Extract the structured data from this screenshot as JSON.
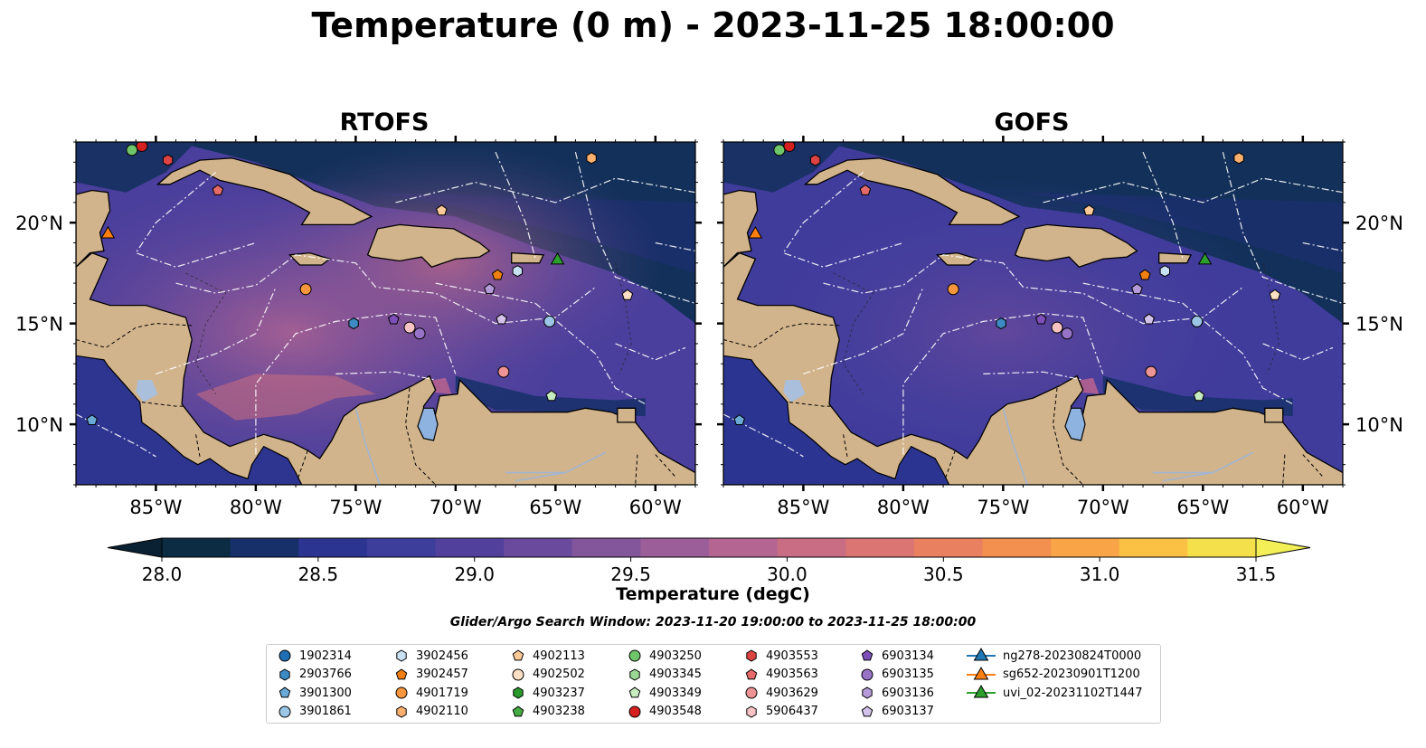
{
  "title": "Temperature (0 m) - 2023-11-25 18:00:00",
  "panels": [
    {
      "title": "RTOFS",
      "variant": "warm"
    },
    {
      "title": "GOFS",
      "variant": "cool"
    }
  ],
  "map": {
    "lon_range": [
      -89,
      -58
    ],
    "lat_range": [
      7,
      24
    ],
    "lon_ticks": [
      -85,
      -80,
      -75,
      -70,
      -65,
      -60
    ],
    "lon_tick_labels": [
      "85°W",
      "80°W",
      "75°W",
      "70°W",
      "65°W",
      "60°W"
    ],
    "lat_ticks": [
      10,
      15,
      20
    ],
    "lat_tick_labels": [
      "10°N",
      "15°N",
      "20°N"
    ],
    "land_color": "#d2b48c",
    "lake_color": "#8fb3e0"
  },
  "colorbar": {
    "label": "Temperature (degC)",
    "vmin": 28.0,
    "vmax": 31.5,
    "ticks": [
      "28.0",
      "28.5",
      "29.0",
      "29.5",
      "30.0",
      "30.5",
      "31.0",
      "31.5"
    ],
    "colors": [
      "#0b2c43",
      "#17306a",
      "#2b3591",
      "#3d3d9c",
      "#51419c",
      "#6a4a9c",
      "#83569c",
      "#9c5e99",
      "#b46591",
      "#c86d84",
      "#db7574",
      "#e9805f",
      "#f38f4f",
      "#f8a447",
      "#fac144",
      "#f4e04a"
    ]
  },
  "search_window": "Glider/Argo Search Window: 2023-11-20 19:00:00 to 2023-11-25 18:00:00",
  "legend": {
    "columns": [
      [
        {
          "label": "1902314",
          "marker": "circle",
          "color": "#1f6fb4"
        },
        {
          "label": "2903766",
          "marker": "hexagon",
          "color": "#3d8bc4"
        },
        {
          "label": "3901300",
          "marker": "pentagon",
          "color": "#6aaad8"
        },
        {
          "label": "3901861",
          "marker": "circle",
          "color": "#9cc6e6"
        }
      ],
      [
        {
          "label": "3902456",
          "marker": "hexagon",
          "color": "#c8e2f3"
        },
        {
          "label": "3902457",
          "marker": "pentagon",
          "color": "#f07f10"
        },
        {
          "label": "4901719",
          "marker": "circle",
          "color": "#f7963c"
        },
        {
          "label": "4902110",
          "marker": "hexagon",
          "color": "#fbb06d"
        }
      ],
      [
        {
          "label": "4902113",
          "marker": "pentagon",
          "color": "#fcc998"
        },
        {
          "label": "4902502",
          "marker": "circle",
          "color": "#fde0c4"
        },
        {
          "label": "4903237",
          "marker": "hexagon",
          "color": "#2a9a2a"
        },
        {
          "label": "4903238",
          "marker": "pentagon",
          "color": "#43ad43"
        }
      ],
      [
        {
          "label": "4903250",
          "marker": "circle",
          "color": "#6fc56a"
        },
        {
          "label": "4903345",
          "marker": "hexagon",
          "color": "#9ad893"
        },
        {
          "label": "4903349",
          "marker": "pentagon",
          "color": "#c7ecc0"
        },
        {
          "label": "4903548",
          "marker": "circle",
          "color": "#d62020"
        }
      ],
      [
        {
          "label": "4903553",
          "marker": "hexagon",
          "color": "#dd4343"
        },
        {
          "label": "4903563",
          "marker": "pentagon",
          "color": "#e76a6a"
        },
        {
          "label": "4903629",
          "marker": "circle",
          "color": "#ef9494"
        },
        {
          "label": "5906437",
          "marker": "hexagon",
          "color": "#f7c3c3"
        }
      ],
      [
        {
          "label": "6903134",
          "marker": "pentagon",
          "color": "#7e4fb8"
        },
        {
          "label": "6903135",
          "marker": "circle",
          "color": "#9874c9"
        },
        {
          "label": "6903136",
          "marker": "hexagon",
          "color": "#b59ad9"
        },
        {
          "label": "6903137",
          "marker": "pentagon",
          "color": "#d3c2ea"
        }
      ],
      [
        {
          "label": "ng278-20230824T0000",
          "marker": "triangle-line",
          "color": "#1f77b4"
        },
        {
          "label": "sg652-20230901T1200",
          "marker": "triangle-line",
          "color": "#ff7f0e"
        },
        {
          "label": "uvi_02-20231102T1447",
          "marker": "triangle-line",
          "color": "#2ca02c"
        }
      ]
    ]
  },
  "markers": [
    {
      "lon": -86.2,
      "lat": 23.6,
      "marker": "circle",
      "color": "#6fc56a"
    },
    {
      "lon": -85.7,
      "lat": 23.8,
      "marker": "circle",
      "color": "#d62020"
    },
    {
      "lon": -84.4,
      "lat": 23.1,
      "marker": "hexagon",
      "color": "#dd4343"
    },
    {
      "lon": -81.9,
      "lat": 21.6,
      "marker": "pentagon",
      "color": "#e76a6a"
    },
    {
      "lon": -87.4,
      "lat": 19.5,
      "marker": "triangle",
      "color": "#ff7f0e"
    },
    {
      "lon": -63.2,
      "lat": 23.2,
      "marker": "hexagon",
      "color": "#fbb06d"
    },
    {
      "lon": -70.7,
      "lat": 20.6,
      "marker": "pentagon",
      "color": "#fcc998"
    },
    {
      "lon": -77.5,
      "lat": 16.7,
      "marker": "circle",
      "color": "#f7963c"
    },
    {
      "lon": -67.9,
      "lat": 17.4,
      "marker": "pentagon",
      "color": "#f07f10"
    },
    {
      "lon": -66.9,
      "lat": 17.6,
      "marker": "hexagon",
      "color": "#c8e2f3"
    },
    {
      "lon": -64.9,
      "lat": 18.2,
      "marker": "triangle",
      "color": "#2ca02c"
    },
    {
      "lon": -68.3,
      "lat": 16.7,
      "marker": "pentagon",
      "color": "#b59ad9"
    },
    {
      "lon": -61.4,
      "lat": 16.4,
      "marker": "pentagon",
      "color": "#fde0c4"
    },
    {
      "lon": -75.1,
      "lat": 15.0,
      "marker": "hexagon",
      "color": "#3d8bc4"
    },
    {
      "lon": -73.1,
      "lat": 15.2,
      "marker": "pentagon",
      "color": "#7e4fb8"
    },
    {
      "lon": -72.3,
      "lat": 14.8,
      "marker": "circle",
      "color": "#f7c3c3"
    },
    {
      "lon": -71.8,
      "lat": 14.5,
      "marker": "circle",
      "color": "#9874c9"
    },
    {
      "lon": -67.7,
      "lat": 15.2,
      "marker": "pentagon",
      "color": "#d3c2ea"
    },
    {
      "lon": -65.3,
      "lat": 15.1,
      "marker": "circle",
      "color": "#9cc6e6"
    },
    {
      "lon": -67.6,
      "lat": 12.6,
      "marker": "circle",
      "color": "#ef9494"
    },
    {
      "lon": -65.2,
      "lat": 11.4,
      "marker": "pentagon",
      "color": "#c7ecc0"
    },
    {
      "lon": -88.2,
      "lat": 10.2,
      "marker": "pentagon",
      "color": "#6aaad8"
    }
  ]
}
